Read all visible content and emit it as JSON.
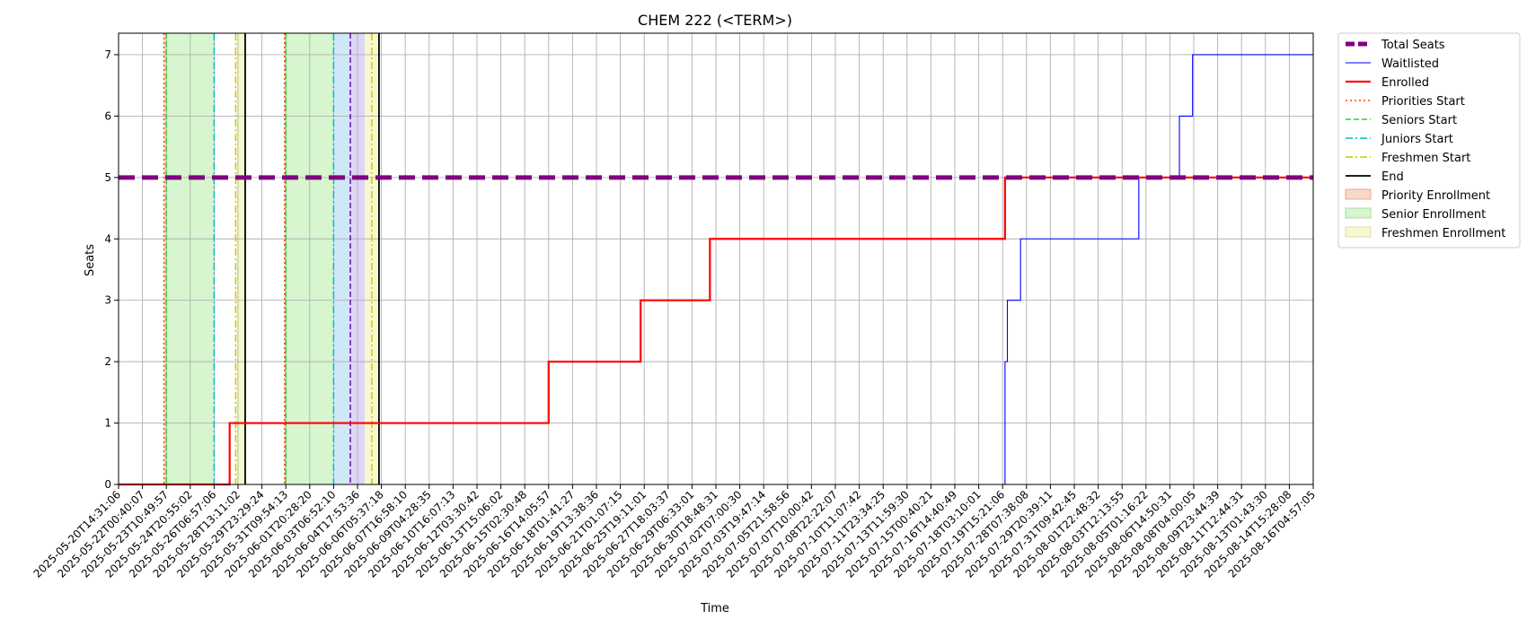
{
  "chart_data": {
    "type": "line",
    "title": "CHEM 222 (<TERM>)",
    "xlabel": "Time",
    "ylabel": "Seats",
    "ylim": [
      0,
      7.35
    ],
    "yticks": [
      0,
      1,
      2,
      3,
      4,
      5,
      6,
      7
    ],
    "grid": true,
    "legend_position": "outside-right",
    "xticks": [
      "2025-05-20T14:31:06",
      "2025-05-22T00:40:07",
      "2025-05-23T10:49:57",
      "2025-05-24T20:55:02",
      "2025-05-26T06:57:06",
      "2025-05-28T13:11:02",
      "2025-05-29T23:29:24",
      "2025-05-31T09:54:13",
      "2025-06-01T20:28:20",
      "2025-06-03T06:52:10",
      "2025-06-04T17:53:36",
      "2025-06-06T05:37:18",
      "2025-06-07T16:58:10",
      "2025-06-09T04:28:35",
      "2025-06-10T16:07:13",
      "2025-06-12T03:30:42",
      "2025-06-13T15:06:02",
      "2025-06-15T02:30:48",
      "2025-06-16T14:05:57",
      "2025-06-18T01:41:27",
      "2025-06-19T13:38:36",
      "2025-06-21T01:07:15",
      "2025-06-25T19:11:01",
      "2025-06-27T18:03:37",
      "2025-06-29T06:33:01",
      "2025-06-30T18:48:31",
      "2025-07-02T07:00:30",
      "2025-07-03T19:47:14",
      "2025-07-05T21:58:56",
      "2025-07-07T10:00:42",
      "2025-07-08T22:22:07",
      "2025-07-10T11:07:42",
      "2025-07-11T23:34:25",
      "2025-07-13T11:59:30",
      "2025-07-15T00:40:21",
      "2025-07-16T14:40:49",
      "2025-07-18T03:10:01",
      "2025-07-19T15:21:06",
      "2025-07-28T07:38:08",
      "2025-07-29T20:39:11",
      "2025-07-31T09:42:45",
      "2025-08-01T22:48:32",
      "2025-08-03T12:13:55",
      "2025-08-05T01:16:22",
      "2025-08-06T14:50:31",
      "2025-08-08T04:00:05",
      "2025-08-09T23:44:39",
      "2025-08-11T12:44:31",
      "2025-08-13T01:43:30",
      "2025-08-14T15:28:08",
      "2025-08-16T04:57:05"
    ],
    "series": [
      {
        "name": "Total Seats",
        "color": "#800080",
        "style": "dashed-thick",
        "points": [
          [
            0,
            5
          ],
          [
            50,
            5
          ]
        ]
      },
      {
        "name": "Waitlisted",
        "color": "#0000ff",
        "style": "step-thin",
        "points": [
          [
            0,
            0
          ],
          [
            37.1,
            0
          ],
          [
            37.1,
            2
          ],
          [
            37.2,
            2
          ],
          [
            37.2,
            3
          ],
          [
            37.75,
            3
          ],
          [
            37.75,
            4
          ],
          [
            42.7,
            4
          ],
          [
            42.7,
            5
          ],
          [
            44.4,
            5
          ],
          [
            44.4,
            6
          ],
          [
            44.95,
            6
          ],
          [
            44.95,
            7
          ],
          [
            50,
            7
          ]
        ]
      },
      {
        "name": "Enrolled",
        "color": "#ff0000",
        "style": "step-thick",
        "points": [
          [
            0,
            0
          ],
          [
            4.65,
            0
          ],
          [
            4.65,
            1
          ],
          [
            18.0,
            1
          ],
          [
            18.0,
            2
          ],
          [
            21.85,
            2
          ],
          [
            21.85,
            3
          ],
          [
            24.75,
            3
          ],
          [
            24.75,
            4
          ],
          [
            37.1,
            4
          ],
          [
            37.1,
            5
          ],
          [
            50,
            5
          ]
        ]
      }
    ],
    "vlines": [
      {
        "name": "Priorities Start",
        "color": "#ff4500",
        "style": "dotted",
        "x": [
          1.9,
          6.95
        ]
      },
      {
        "name": "Seniors Start",
        "color": "#32cd32",
        "style": "dashed",
        "x": [
          2.0,
          7.0
        ]
      },
      {
        "name": "Juniors Start",
        "color": "#00bfbf",
        "style": "dashdot",
        "x": [
          4.0,
          9.0
        ]
      },
      {
        "name": "Freshmen Start",
        "color": "#cccc00",
        "style": "dashdot",
        "x": [
          4.9,
          10.6
        ]
      },
      {
        "name": "End",
        "color": "#000000",
        "style": "solid",
        "x": [
          5.3,
          10.9
        ]
      },
      {
        "name": "",
        "color": "#6a0dad",
        "style": "dashed",
        "x": [
          9.7
        ]
      }
    ],
    "spans": [
      {
        "name": "Priority Enrollment",
        "fill": "#f8d8c8",
        "ranges": [
          [
            1.9,
            2.0
          ],
          [
            6.95,
            7.0
          ]
        ]
      },
      {
        "name": "Senior Enrollment",
        "fill": "#d7f5cf",
        "ranges": [
          [
            2.0,
            4.0
          ],
          [
            7.0,
            9.0
          ]
        ]
      },
      {
        "name": "",
        "fill": "#cfe8f8",
        "ranges": [
          [
            9.0,
            9.7
          ]
        ]
      },
      {
        "name": "",
        "fill": "#ddd6f6",
        "ranges": [
          [
            9.7,
            10.3
          ]
        ]
      },
      {
        "name": "Freshmen Enrollment",
        "fill": "#f7f8cf",
        "ranges": [
          [
            4.9,
            5.3
          ],
          [
            10.3,
            10.9
          ]
        ]
      }
    ],
    "legend": [
      {
        "label": "Total Seats",
        "kind": "line",
        "color": "#800080",
        "style": "dashed-thick"
      },
      {
        "label": "Waitlisted",
        "kind": "line",
        "color": "#0000ff",
        "style": "solid-thin"
      },
      {
        "label": "Enrolled",
        "kind": "line",
        "color": "#ff0000",
        "style": "solid-thick"
      },
      {
        "label": "Priorities Start",
        "kind": "line",
        "color": "#ff4500",
        "style": "dotted"
      },
      {
        "label": "Seniors Start",
        "kind": "line",
        "color": "#32cd32",
        "style": "dashed"
      },
      {
        "label": "Juniors Start",
        "kind": "line",
        "color": "#00bfbf",
        "style": "dashdot"
      },
      {
        "label": "Freshmen Start",
        "kind": "line",
        "color": "#cccc00",
        "style": "dashdot"
      },
      {
        "label": "End",
        "kind": "line",
        "color": "#000000",
        "style": "solid"
      },
      {
        "label": "Priority Enrollment",
        "kind": "patch",
        "color": "#f8d8c8",
        "edge": "#e8a890"
      },
      {
        "label": "Senior Enrollment",
        "kind": "patch",
        "color": "#d7f5cf",
        "edge": "#a8dca0"
      },
      {
        "label": "Freshmen Enrollment",
        "kind": "patch",
        "color": "#f7f8cf",
        "edge": "#dcdca0"
      }
    ]
  }
}
